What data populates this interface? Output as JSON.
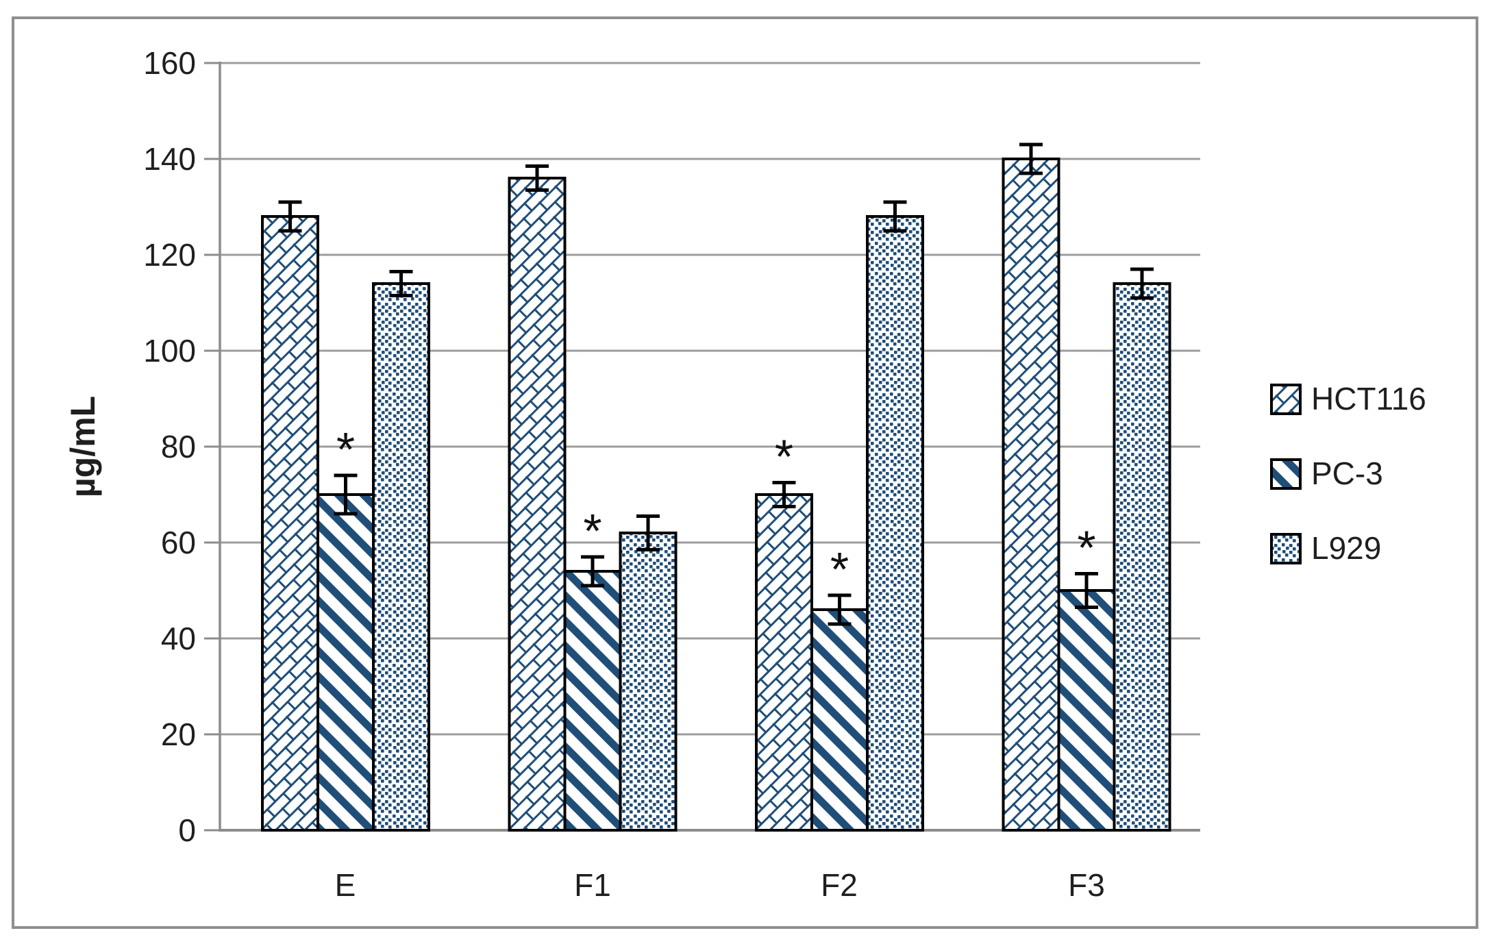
{
  "figure": {
    "background": "#ffffff",
    "border_color": "#8f8f8f"
  },
  "chart_data": {
    "type": "bar",
    "title": "",
    "ylabel": "µg/mL",
    "xlabel": "",
    "ylim": [
      0,
      160
    ],
    "ytick_step": 20,
    "yticks": [
      "0",
      "20",
      "40",
      "60",
      "80",
      "100",
      "120",
      "140",
      "160"
    ],
    "categories": [
      "E",
      "F1",
      "F2",
      "F3"
    ],
    "series": [
      {
        "name": "HCT116",
        "pattern": "diagonal-brick",
        "values": [
          128,
          136,
          70,
          140
        ],
        "errors": [
          3,
          2.5,
          2.5,
          3
        ],
        "significant": [
          false,
          false,
          true,
          false
        ]
      },
      {
        "name": "PC-3",
        "pattern": "wide-downward-diagonal",
        "values": [
          70,
          54,
          46,
          50
        ],
        "errors": [
          4,
          3,
          3,
          3.5
        ],
        "significant": [
          true,
          true,
          true,
          true
        ]
      },
      {
        "name": "L929",
        "pattern": "dense-dots",
        "values": [
          114,
          62,
          128,
          114
        ],
        "errors": [
          2.5,
          3.5,
          3,
          3
        ],
        "significant": [
          false,
          false,
          false,
          false
        ]
      }
    ],
    "significance_marker": "*",
    "legend_position": "right",
    "grid": "horizontal",
    "pattern_color": "#1f4e79",
    "gridline_color": "#9d9d9d",
    "axis_color": "#8c8c8c",
    "text_color": "#1f1f1f",
    "bar_outline_color": "#000000",
    "error_bar_color": "#000000"
  }
}
